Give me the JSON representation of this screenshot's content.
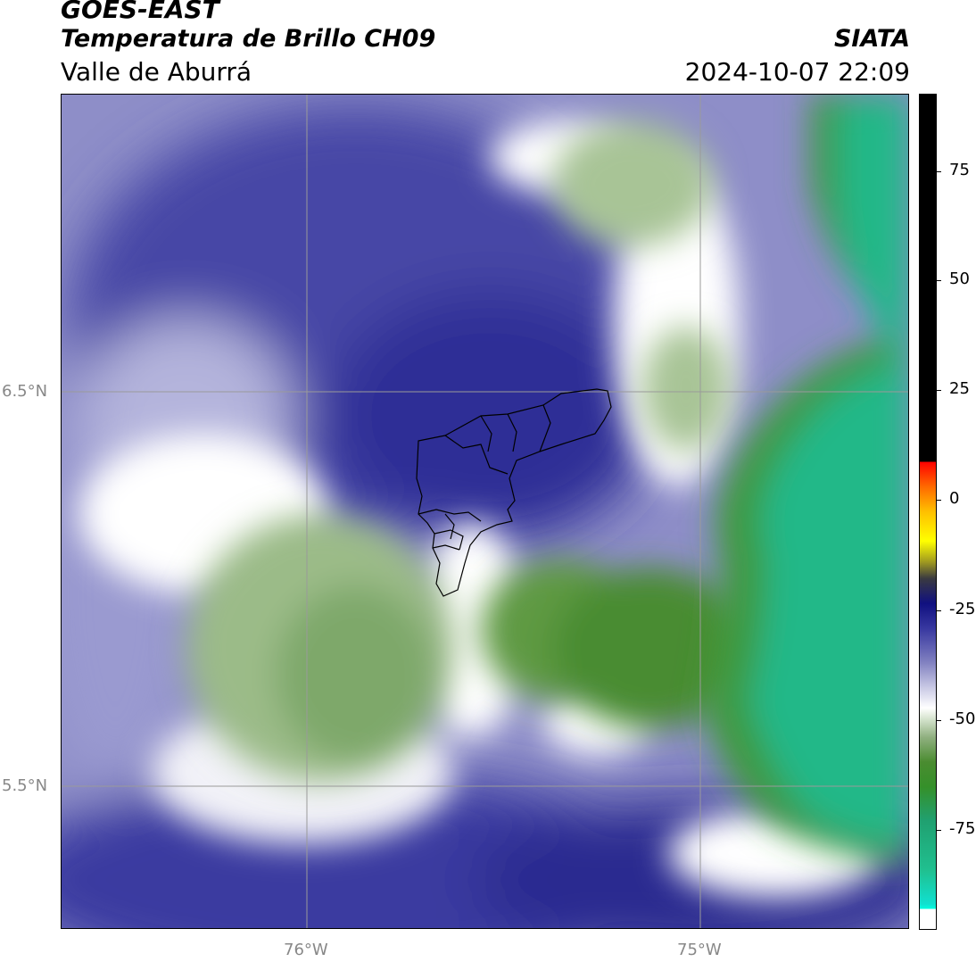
{
  "header": {
    "line1": "GOES-EAST",
    "line2": "Temperatura de Brillo CH09",
    "line3": "Valle de Aburrá",
    "right_line1": "SIATA",
    "right_line2": "2024-10-07 22:09"
  },
  "map": {
    "lat_labels": [
      "6.5°N",
      "5.5°N"
    ],
    "lon_labels": [
      "76°W",
      "75°W"
    ]
  },
  "colorbar": {
    "ticks": [
      "75",
      "50",
      "25",
      "0",
      "-25",
      "-50",
      "-75"
    ]
  },
  "colors": {
    "cold_cloud": "#2a2a8c",
    "mid_cloud": "#8a8ac4",
    "clear_white": "#ffffff",
    "warm_green": "#4a8c30",
    "ocean_teal": "#22b888"
  }
}
